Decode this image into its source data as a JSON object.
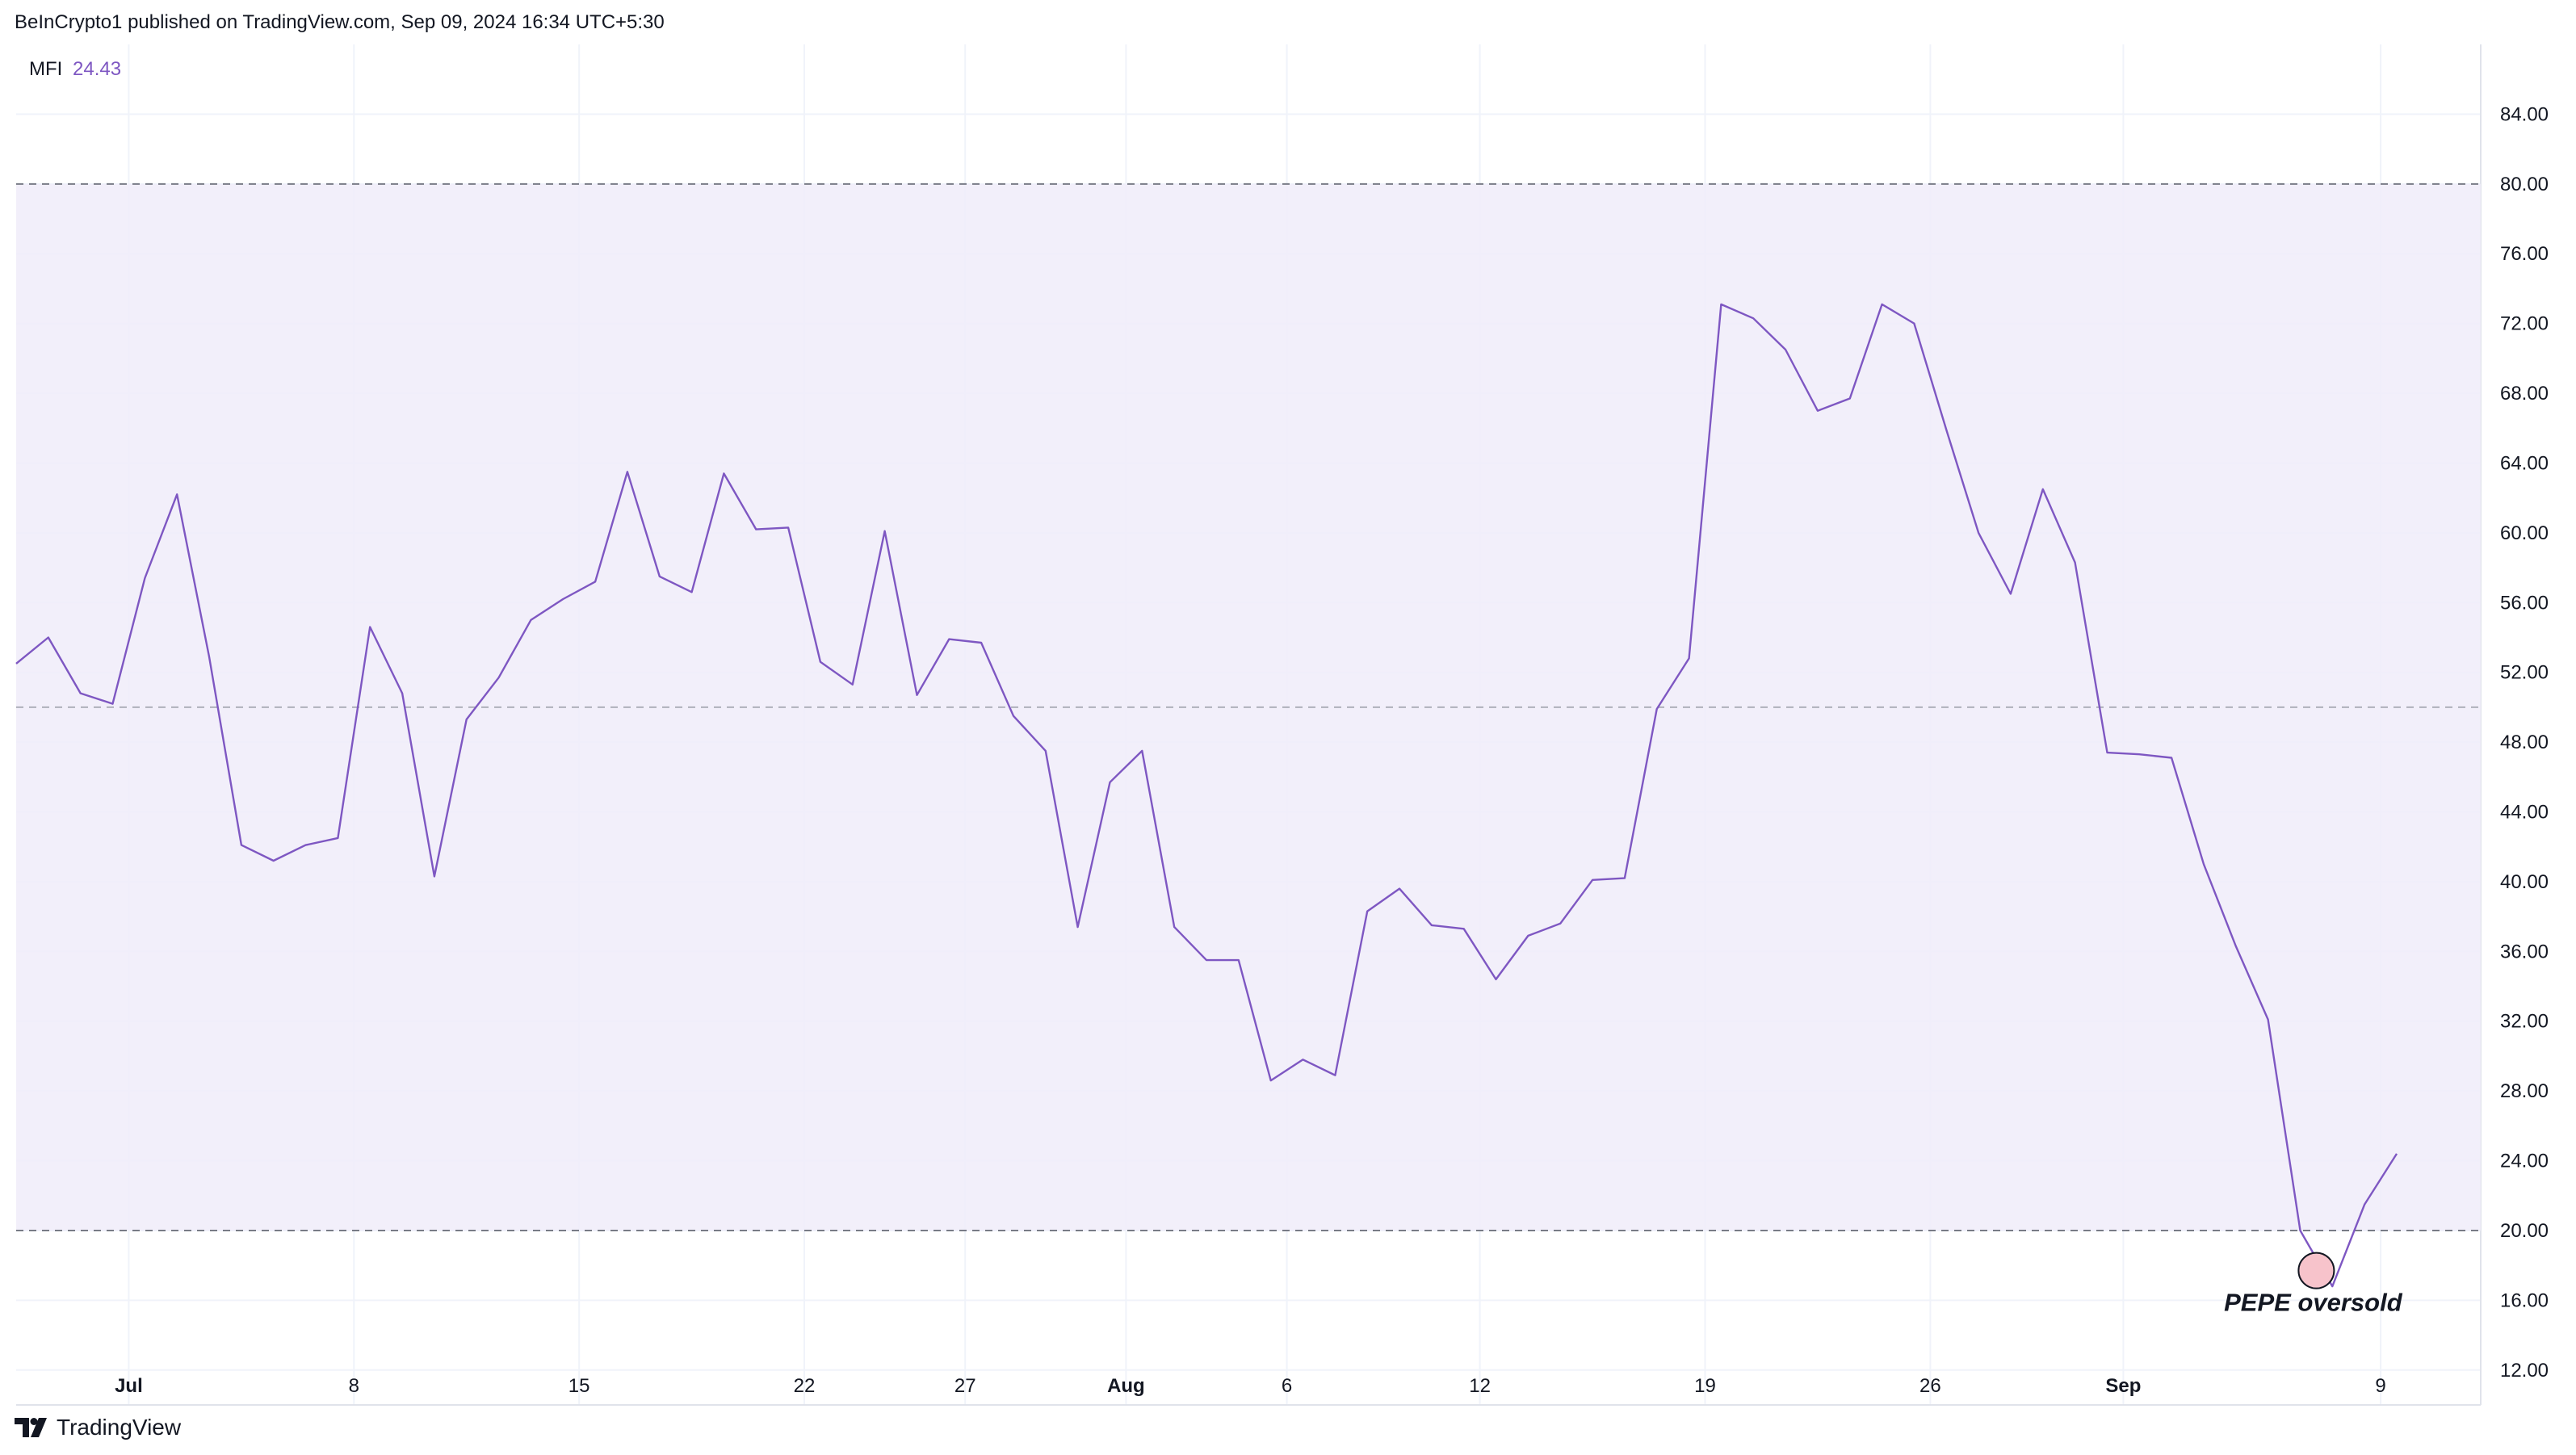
{
  "header": {
    "published_text": "BeInCrypto1 published on TradingView.com, Sep 09, 2024 16:34 UTC+5:30"
  },
  "footer": {
    "brand": "TradingView"
  },
  "chart_data": {
    "type": "line",
    "indicator_label": "MFI",
    "indicator_value": "24.43",
    "ylim": [
      10,
      88
    ],
    "y_ticks": [
      "12.00",
      "16.00",
      "20.00",
      "24.00",
      "28.00",
      "32.00",
      "36.00",
      "40.00",
      "44.00",
      "48.00",
      "52.00",
      "56.00",
      "60.00",
      "64.00",
      "68.00",
      "72.00",
      "76.00",
      "80.00",
      "84.00"
    ],
    "x_ticks": [
      {
        "label": "Jul",
        "index": 3.5,
        "bold": true
      },
      {
        "label": "8",
        "index": 10.5,
        "bold": false
      },
      {
        "label": "15",
        "index": 17.5,
        "bold": false
      },
      {
        "label": "22",
        "index": 24.5,
        "bold": false
      },
      {
        "label": "27",
        "index": 29.5,
        "bold": false
      },
      {
        "label": "Aug",
        "index": 34.5,
        "bold": true
      },
      {
        "label": "6",
        "index": 39.5,
        "bold": false
      },
      {
        "label": "12",
        "index": 45.5,
        "bold": false
      },
      {
        "label": "19",
        "index": 52.5,
        "bold": false
      },
      {
        "label": "26",
        "index": 59.5,
        "bold": false
      },
      {
        "label": "Sep",
        "index": 65.5,
        "bold": true
      },
      {
        "label": "9",
        "index": 73.5,
        "bold": false
      }
    ],
    "band": {
      "upper": 80,
      "middle": 50,
      "lower": 20
    },
    "colors": {
      "line": "#7e57c2",
      "band_fill": "#f0ecf9",
      "band_line": "#787b86",
      "marker_fill": "#f7c3cb",
      "grid": "#f0f3fa"
    },
    "series": [
      {
        "values": [
          52.5,
          54.0,
          50.8,
          50.2,
          57.4,
          62.2,
          52.9,
          42.1,
          41.2,
          42.1,
          42.5,
          54.6,
          50.8,
          40.3,
          49.3,
          51.7,
          55.0,
          56.2,
          57.2,
          63.5,
          57.5,
          56.6,
          63.4,
          60.2,
          60.3,
          52.6,
          51.3,
          60.1,
          50.7,
          53.9,
          53.7,
          49.5,
          47.5,
          37.4,
          45.7,
          47.5,
          37.4,
          35.5,
          35.5,
          28.6,
          29.8,
          28.9,
          38.3,
          39.6,
          37.5,
          37.3,
          34.4,
          36.9,
          37.6,
          40.1,
          40.2,
          49.9,
          52.8,
          73.1,
          72.3,
          70.5,
          67.0,
          67.7,
          73.1,
          72.0,
          65.9,
          60.0,
          56.5,
          62.5,
          58.3,
          47.4,
          47.3,
          47.1,
          41.0,
          36.3,
          32.1,
          20.0,
          16.8,
          21.5,
          24.4
        ]
      }
    ],
    "annotation": {
      "text": "PEPE oversold",
      "index": 71.5,
      "value": 17.7
    }
  }
}
